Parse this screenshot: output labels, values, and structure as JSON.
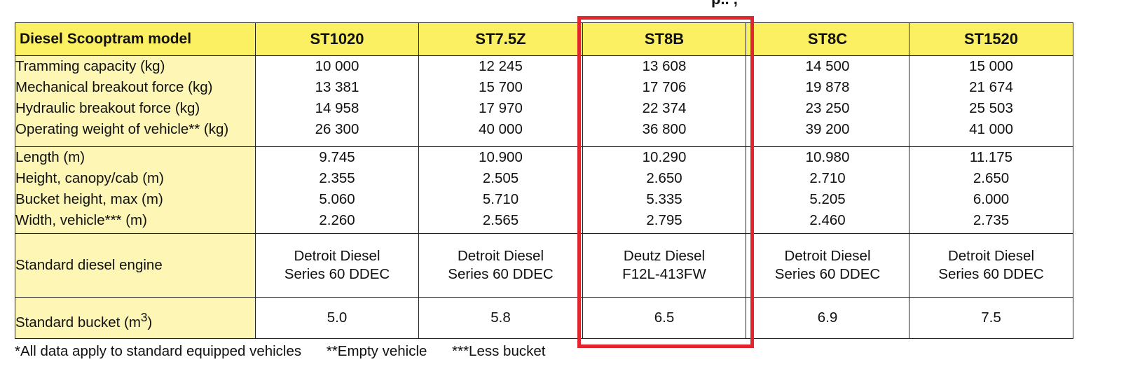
{
  "top_fragment": "p.. ,",
  "table": {
    "header_label": "Diesel Scooptram model",
    "models": [
      "ST1020",
      "ST7.5Z",
      "ST8B",
      "ST8C",
      "ST1520"
    ],
    "group1": {
      "labels": [
        "Tramming capacity (kg)",
        "Mechanical breakout force (kg)",
        "Hydraulic breakout force (kg)",
        "Operating weight of vehicle** (kg)"
      ],
      "values": [
        [
          "10 000",
          "13 381",
          "14 958",
          "26 300"
        ],
        [
          "12 245",
          "15 700",
          "17 970",
          "40 000"
        ],
        [
          "13 608",
          "17 706",
          "22 374",
          "36 800"
        ],
        [
          "14 500",
          "19 878",
          "23 250",
          "39 200"
        ],
        [
          "15 000",
          "21 674",
          "25 503",
          "41 000"
        ]
      ]
    },
    "group2": {
      "labels": [
        "Length (m)",
        "Height, canopy/cab (m)",
        "Bucket height, max (m)",
        "Width, vehicle*** (m)"
      ],
      "values": [
        [
          "9.745",
          "2.355",
          "5.060",
          "2.260"
        ],
        [
          "10.900",
          "2.505",
          "5.710",
          "2.565"
        ],
        [
          "10.290",
          "2.650",
          "5.335",
          "2.795"
        ],
        [
          "10.980",
          "2.710",
          "5.205",
          "2.460"
        ],
        [
          "11.175",
          "2.650",
          "6.000",
          "2.735"
        ]
      ]
    },
    "engine": {
      "label": "Standard diesel engine",
      "values": [
        [
          "Detroit Diesel",
          "Series 60 DDEC"
        ],
        [
          "Detroit Diesel",
          "Series 60 DDEC"
        ],
        [
          "Deutz Diesel",
          "F12L-413FW"
        ],
        [
          "Detroit Diesel",
          "Series 60 DDEC"
        ],
        [
          "Detroit Diesel",
          "Series 60 DDEC"
        ]
      ]
    },
    "bucket": {
      "label_text": "Standard bucket (m",
      "label_sup": "3",
      "label_close": ")",
      "values": [
        "5.0",
        "5.8",
        "6.5",
        "6.9",
        "7.5"
      ]
    }
  },
  "footnotes": [
    "*All data apply to standard equipped vehicles",
    "**Empty vehicle",
    "***Less bucket"
  ],
  "colors": {
    "header_bg": "#fbef62",
    "label_bg": "#fdf6b4",
    "highlight": "#e0252e"
  },
  "highlighted_model": "ST8B"
}
